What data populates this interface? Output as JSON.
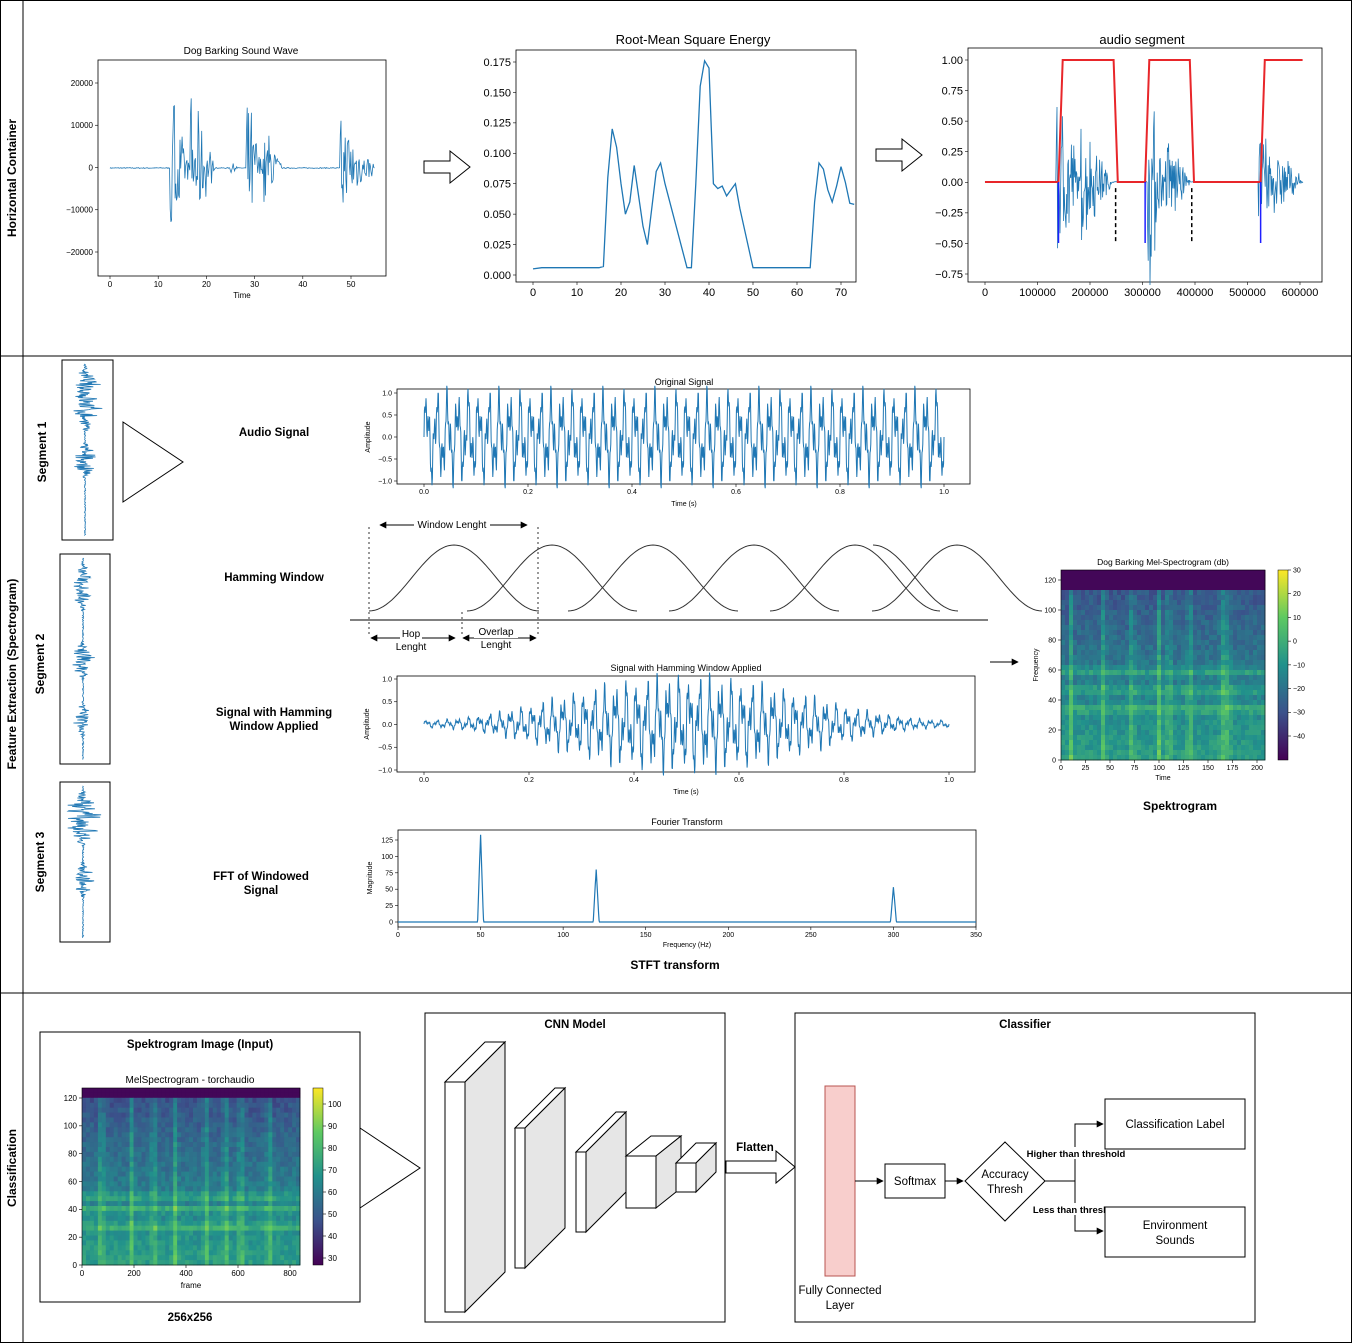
{
  "lanes": [
    {
      "label": "Horizontal Container"
    },
    {
      "label": "Feature Extraction (Spectrogram)"
    },
    {
      "label": "Classification"
    }
  ],
  "row1": {
    "wave": {
      "title": "Dog Barking Sound Wave",
      "xlabel": "Time",
      "xticks": [
        "0",
        "10",
        "20",
        "30",
        "40",
        "50"
      ],
      "yticks": [
        "20000",
        "10000",
        "0",
        "−10000",
        "−20000"
      ]
    },
    "rms": {
      "title": "Root-Mean Square Energy",
      "xticks": [
        "0",
        "10",
        "20",
        "30",
        "40",
        "50",
        "60",
        "70"
      ],
      "yticks": [
        "0.175",
        "0.150",
        "0.125",
        "0.100",
        "0.075",
        "0.050",
        "0.025",
        "0.000"
      ]
    },
    "segment": {
      "title": "audio segment",
      "xticks": [
        "0",
        "100000",
        "200000",
        "300000",
        "400000",
        "500000",
        "600000"
      ],
      "yticks": [
        "1.00",
        "0.75",
        "0.50",
        "0.25",
        "0.00",
        "−0.25",
        "−0.50",
        "−0.75"
      ]
    }
  },
  "row2": {
    "segments": [
      "Segment 1",
      "Segment 2",
      "Segment 3"
    ],
    "step_labels": {
      "audio": "Audio Signal",
      "hamming": "Hamming Window",
      "windowed_1": "Signal with Hamming",
      "windowed_2": "Window Applied",
      "fft_1": "FFT of Windowed",
      "fft_2": "Signal"
    },
    "original": {
      "title": "Original Signal",
      "xlabel": "Time (s)",
      "ylabel": "Amplitude",
      "xticks": [
        "0.0",
        "0.2",
        "0.4",
        "0.6",
        "0.8",
        "1.0"
      ],
      "yticks": [
        "1.0",
        "0.5",
        "0.0",
        "−0.5",
        "−1.0"
      ]
    },
    "hamming": {
      "window_length": "Window Lenght",
      "hop_1": "Hop",
      "hop_2": "Lenght",
      "overlap_1": "Overlap",
      "overlap_2": "Lenght"
    },
    "windowed": {
      "title": "Signal with Hamming Window Applied",
      "xlabel": "Time (s)",
      "ylabel": "Amplitude",
      "xticks": [
        "0.0",
        "0.2",
        "0.4",
        "0.6",
        "0.8",
        "1.0"
      ],
      "yticks": [
        "1.0",
        "0.5",
        "0.0",
        "−0.5",
        "−1.0"
      ]
    },
    "fft": {
      "title": "Fourier Transform",
      "xlabel": "Frequency (Hz)",
      "ylabel": "Magnitude",
      "xticks": [
        "0",
        "50",
        "100",
        "150",
        "200",
        "250",
        "300",
        "350"
      ],
      "yticks": [
        "125",
        "100",
        "75",
        "50",
        "25",
        "0"
      ]
    },
    "stft_label": "STFT transform",
    "mel": {
      "title": "Dog Barking Mel-Spectrogram (db)",
      "xlabel": "Time",
      "ylabel": "Frequency",
      "xticks": [
        "0",
        "25",
        "50",
        "75",
        "100",
        "125",
        "150",
        "175",
        "200"
      ],
      "yticks": [
        "120",
        "100",
        "80",
        "60",
        "40",
        "20",
        "0"
      ],
      "cbar": [
        "30",
        "20",
        "10",
        "0",
        "−10",
        "−20",
        "−30",
        "−40"
      ]
    },
    "spek_label": "Spektrogram"
  },
  "row3": {
    "input_title": "Spektrogram Image (Input)",
    "torch": {
      "title": "MelSpectrogram - torchaudio",
      "xlabel": "frame",
      "xticks": [
        "0",
        "200",
        "400",
        "600",
        "800"
      ],
      "yticks": [
        "120",
        "100",
        "80",
        "60",
        "40",
        "20",
        "0"
      ],
      "cbar": [
        "100",
        "90",
        "80",
        "70",
        "60",
        "50",
        "40",
        "30"
      ]
    },
    "size_label": "256x256",
    "cnn_title": "CNN Model",
    "flatten": "Flatten",
    "classifier_title": "Classifier",
    "fc_1": "Fully Connected",
    "fc_2": "Layer",
    "softmax": "Softmax",
    "thresh_1": "Accuracy",
    "thresh_2": "Thresh",
    "higher": "Higher than threshold",
    "lower": "Less than threshold",
    "class_label": "Classification Label",
    "env_1": "Environment",
    "env_2": "Sounds"
  },
  "colors": {
    "signal": "#1f77b4",
    "mask": "#e8262a",
    "edge": "#1f1fff",
    "fc_fill": "#f8cecc",
    "fc_stroke": "#b85450"
  }
}
